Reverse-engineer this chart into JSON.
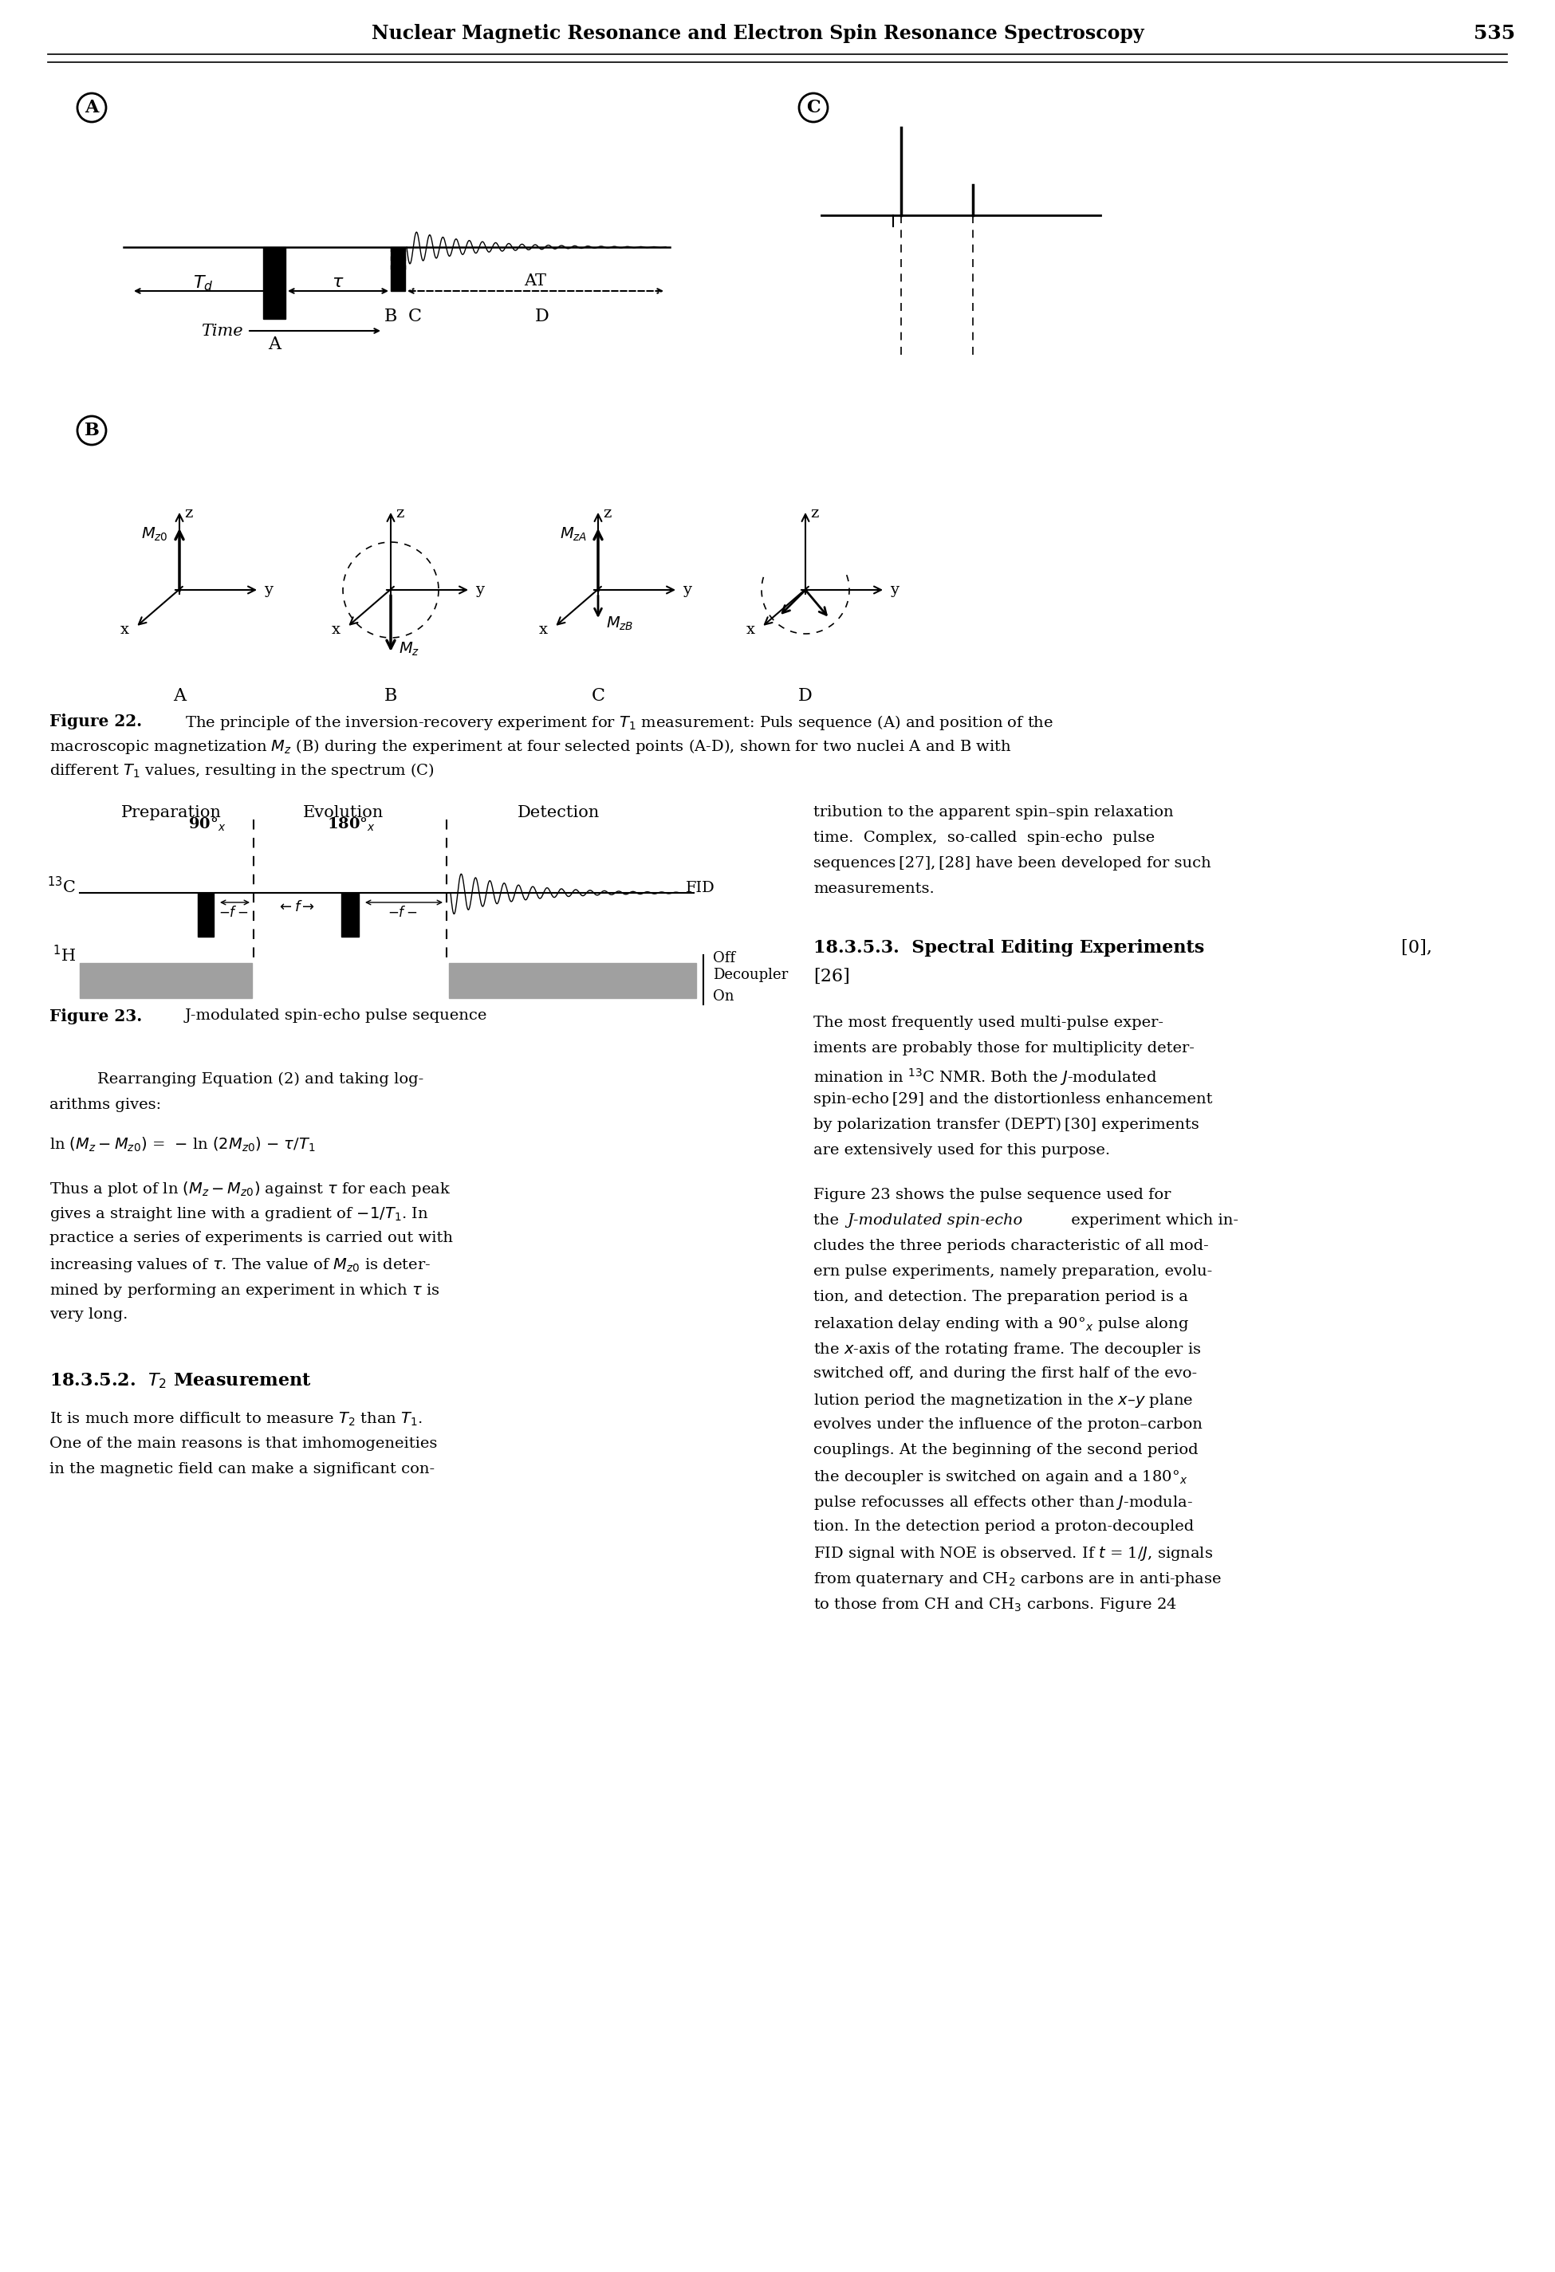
{
  "page_title": "Nuclear Magnetic Resonance and Electron Spin Resonance Spectroscopy",
  "page_number": "535",
  "background": "#ffffff",
  "black": "#000000"
}
